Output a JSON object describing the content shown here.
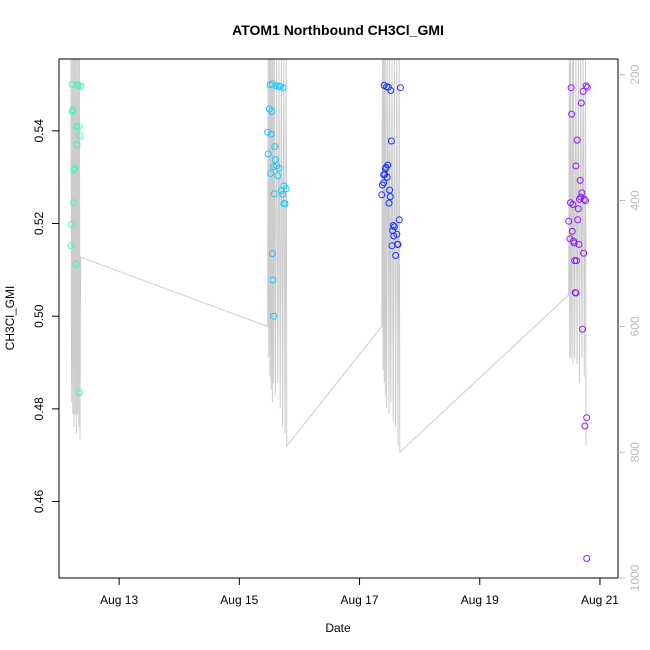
{
  "chart_data": {
    "type": "scatter",
    "title": "ATOM1 Northbound CH3Cl_GMI",
    "xlabel": "Date",
    "ylabel": "CH3Cl_GMI",
    "xlim": [
      12.0,
      21.3
    ],
    "ylim": [
      0.4435,
      0.5555
    ],
    "right_axis": {
      "ylim": [
        1000,
        175
      ],
      "ticks": [
        200,
        400,
        600,
        800,
        1000
      ],
      "tick_color": "#bbbbbb",
      "label": ""
    },
    "x_ticks": [
      {
        "value": 13,
        "label": "Aug 13"
      },
      {
        "value": 15,
        "label": "Aug 15"
      },
      {
        "value": 17,
        "label": "Aug 17"
      },
      {
        "value": 19,
        "label": "Aug 19"
      },
      {
        "value": 21,
        "label": "Aug 21"
      }
    ],
    "y_ticks": [
      {
        "value": 0.46,
        "label": "0.46"
      },
      {
        "value": 0.48,
        "label": "0.48"
      },
      {
        "value": 0.5,
        "label": "0.50"
      },
      {
        "value": 0.52,
        "label": "0.52"
      },
      {
        "value": 0.54,
        "label": "0.54"
      }
    ],
    "grid": false,
    "series": [
      {
        "color": "#33ffb3",
        "x": [
          12.2,
          12.21,
          12.22,
          12.22,
          12.23,
          12.24,
          12.25,
          12.26,
          12.28,
          12.29,
          12.3,
          12.3,
          12.32,
          12.33,
          12.35,
          12.36,
          12.34
        ],
        "y": [
          0.5152,
          0.5198,
          0.5442,
          0.55,
          0.5445,
          0.5245,
          0.5316,
          0.5319,
          0.5112,
          0.5409,
          0.55,
          0.537,
          0.5498,
          0.5409,
          0.5389,
          0.5497,
          0.4835
        ]
      },
      {
        "color": "#1ac6ff",
        "x": [
          15.47,
          15.48,
          15.5,
          15.51,
          15.52,
          15.53,
          15.54,
          15.55,
          15.56,
          15.57,
          15.59,
          15.6,
          15.61,
          15.62,
          15.64,
          15.66,
          15.68,
          15.7,
          15.72,
          15.74,
          15.76,
          15.78,
          15.55,
          15.57,
          15.58,
          15.66,
          15.74,
          15.73
        ],
        "y": [
          0.5397,
          0.535,
          0.5447,
          0.5499,
          0.5308,
          0.5393,
          0.5442,
          0.5501,
          0.5078,
          0.5,
          0.5366,
          0.5338,
          0.5497,
          0.5325,
          0.5303,
          0.5496,
          0.5495,
          0.5271,
          0.5263,
          0.5243,
          0.5243,
          0.5275,
          0.5135,
          0.5323,
          0.5264,
          0.5319,
          0.5281,
          0.5493
        ]
      },
      {
        "color": "#1a33ff",
        "x": [
          17.37,
          17.38,
          17.4,
          17.41,
          17.42,
          17.44,
          17.45,
          17.47,
          17.48,
          17.5,
          17.52,
          17.53,
          17.55,
          17.56,
          17.58,
          17.6,
          17.62,
          17.64,
          17.66,
          17.68,
          17.4,
          17.43,
          17.46,
          17.49,
          17.51,
          17.54,
          17.57,
          17.63
        ],
        "y": [
          0.5262,
          0.5283,
          0.5305,
          0.5498,
          0.5306,
          0.5321,
          0.5495,
          0.5326,
          0.5494,
          0.5272,
          0.5487,
          0.5378,
          0.5185,
          0.5196,
          0.5193,
          0.5131,
          0.5177,
          0.5155,
          0.5208,
          0.5493,
          0.5288,
          0.5318,
          0.53,
          0.5244,
          0.5258,
          0.5152,
          0.5173,
          0.5155
        ]
      },
      {
        "color": "#8c1aff",
        "x": [
          20.48,
          20.5,
          20.52,
          20.53,
          20.55,
          20.56,
          20.58,
          20.59,
          20.6,
          20.62,
          20.63,
          20.64,
          20.66,
          20.67,
          20.68,
          20.7,
          20.72,
          20.73,
          20.75,
          20.76,
          20.78,
          20.79,
          20.51,
          20.54,
          20.57,
          20.61,
          20.65,
          20.69,
          20.71,
          20.74,
          20.77,
          20.78,
          20.6
        ],
        "y": [
          0.5205,
          0.5167,
          0.5493,
          0.5436,
          0.5241,
          0.5162,
          0.512,
          0.5051,
          0.505,
          0.538,
          0.5208,
          0.5232,
          0.5252,
          0.5293,
          0.5257,
          0.5266,
          0.5485,
          0.5136,
          0.4763,
          0.5249,
          0.4781,
          0.5494,
          0.5245,
          0.5183,
          0.5158,
          0.512,
          0.5155,
          0.546,
          0.4972,
          0.5252,
          0.5497,
          0.4477,
          0.5324
        ]
      }
    ],
    "flight_track": {
      "color": "#cccccc",
      "pressure_axis": "right",
      "x": [
        12.2,
        12.21,
        12.22,
        12.23,
        12.24,
        12.25,
        12.26,
        12.27,
        12.28,
        12.29,
        12.3,
        12.31,
        12.32,
        12.33,
        12.34,
        12.35,
        12.36,
        15.47,
        15.48,
        15.49,
        15.5,
        15.51,
        15.52,
        15.53,
        15.54,
        15.55,
        15.56,
        15.57,
        15.58,
        15.6,
        15.62,
        15.64,
        15.66,
        15.68,
        15.7,
        15.72,
        15.74,
        15.76,
        15.78,
        15.79,
        17.37,
        17.38,
        17.39,
        17.4,
        17.41,
        17.42,
        17.43,
        17.44,
        17.45,
        17.47,
        17.49,
        17.5,
        17.52,
        17.54,
        17.56,
        17.58,
        17.6,
        17.62,
        17.64,
        17.66,
        17.67,
        20.48,
        20.49,
        20.5,
        20.51,
        20.52,
        20.54,
        20.55,
        20.56,
        20.58,
        20.6,
        20.62,
        20.64,
        20.66,
        20.68,
        20.7,
        20.72,
        20.74,
        20.76,
        20.77
      ],
      "y": [
        175,
        720,
        175,
        740,
        175,
        760,
        175,
        740,
        175,
        770,
        175,
        740,
        175,
        760,
        175,
        780,
        490,
        600,
        175,
        650,
        175,
        680,
        175,
        700,
        175,
        720,
        175,
        690,
        175,
        710,
        175,
        690,
        175,
        730,
        175,
        760,
        175,
        770,
        175,
        790,
        600,
        175,
        670,
        175,
        690,
        175,
        710,
        175,
        730,
        175,
        740,
        175,
        720,
        175,
        750,
        175,
        760,
        175,
        790,
        175,
        800,
        550,
        175,
        650,
        175,
        650,
        175,
        660,
        175,
        650,
        175,
        660,
        175,
        690,
        175,
        650,
        175,
        680,
        175,
        790
      ]
    }
  }
}
